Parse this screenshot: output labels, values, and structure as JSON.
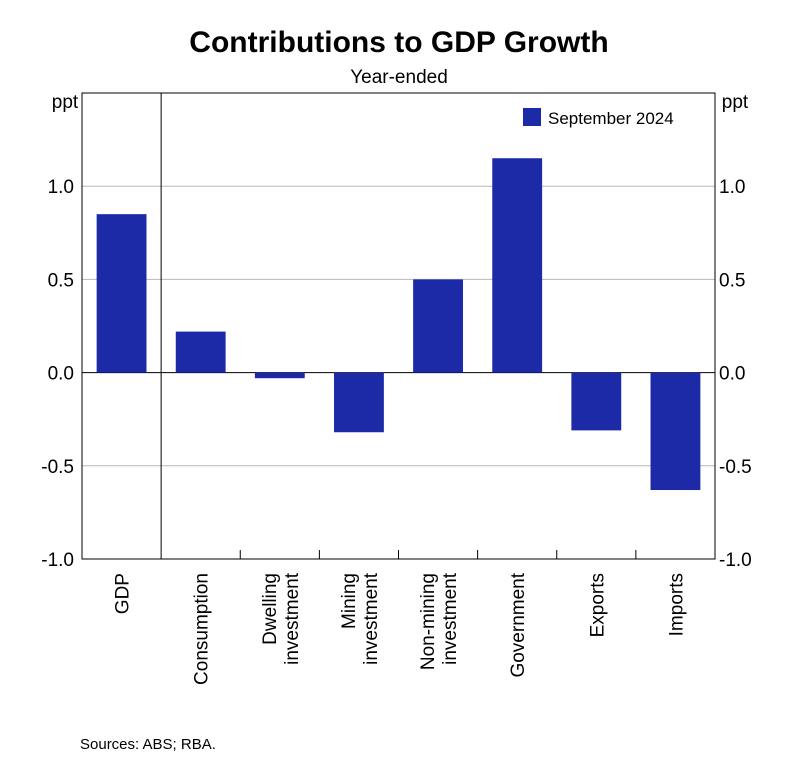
{
  "chart_data": {
    "type": "bar",
    "title": "Contributions to GDP Growth",
    "subtitle": "Year-ended",
    "unit_left": "ppt",
    "unit_right": "ppt",
    "categories": [
      [
        "GDP"
      ],
      [
        "Consumption"
      ],
      [
        "Dwelling",
        "investment"
      ],
      [
        "Mining",
        "investment"
      ],
      [
        "Non-mining",
        "investment"
      ],
      [
        "Government"
      ],
      [
        "Exports"
      ],
      [
        "Imports"
      ]
    ],
    "series": [
      {
        "name": "September 2024",
        "color": "#1c2aa8",
        "values": [
          0.85,
          0.22,
          -0.03,
          -0.32,
          0.5,
          1.15,
          -0.31,
          -0.63
        ]
      }
    ],
    "ylim": [
      -1.0,
      1.5
    ],
    "yticks": [
      -1.0,
      -0.5,
      0.0,
      0.5,
      1.0
    ],
    "ytick_labels": [
      "-1.0",
      "-0.5",
      "0.0",
      "0.5",
      "1.0"
    ],
    "grid": true,
    "legend_position": "top-right",
    "source": "Sources: ABS; RBA."
  }
}
